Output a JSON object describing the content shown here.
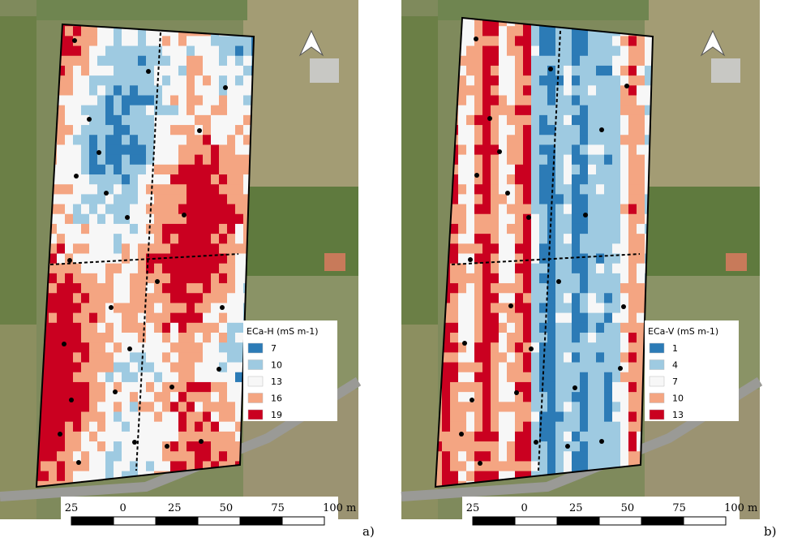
{
  "panels": [
    {
      "legend_title": "ECa-H (mS m-1)",
      "legend": [
        {
          "label": "7",
          "color": "#2c7bb6"
        },
        {
          "label": "10",
          "color": "#9ecae1"
        },
        {
          "label": "13",
          "color": "#f7f7f7"
        },
        {
          "label": "16",
          "color": "#f4a582"
        },
        {
          "label": "19",
          "color": "#ca0020"
        }
      ],
      "scale_labels": [
        "25",
        "0",
        "25",
        "50",
        "75",
        "100 m"
      ],
      "panel_label": "a)"
    },
    {
      "legend_title": "ECa-V (mS m-1)",
      "legend": [
        {
          "label": "1",
          "color": "#2c7bb6"
        },
        {
          "label": "4",
          "color": "#9ecae1"
        },
        {
          "label": "7",
          "color": "#f7f7f7"
        },
        {
          "label": "10",
          "color": "#f4a582"
        },
        {
          "label": "13",
          "color": "#ca0020"
        }
      ],
      "scale_labels": [
        "25",
        "0",
        "25",
        "50",
        "75",
        "100 m"
      ],
      "panel_label": "b)"
    }
  ]
}
